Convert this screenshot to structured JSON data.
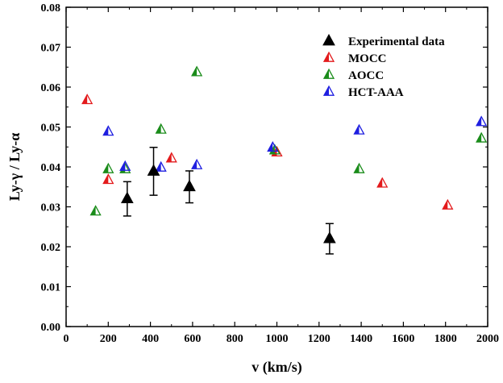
{
  "chart_data": {
    "type": "scatter",
    "title": "",
    "xlabel": "v (km/s)",
    "ylabel": "Ly-γ / Ly-α",
    "xlim": [
      0,
      2000
    ],
    "ylim": [
      0,
      0.08
    ],
    "x_ticks": [
      0,
      200,
      400,
      600,
      800,
      1000,
      1200,
      1400,
      1600,
      1800,
      2000
    ],
    "y_ticks": [
      0.0,
      0.01,
      0.02,
      0.03,
      0.04,
      0.05,
      0.06,
      0.07,
      0.08
    ],
    "x_tick_labels": [
      "0",
      "200",
      "400",
      "600",
      "800",
      "1000",
      "1200",
      "1400",
      "1600",
      "1800",
      "2000"
    ],
    "y_tick_labels": [
      "0.00",
      "0.01",
      "0.02",
      "0.03",
      "0.04",
      "0.05",
      "0.06",
      "0.07",
      "0.08"
    ],
    "grid": false,
    "legend_position": "top-right",
    "series": [
      {
        "name": "Experimental data",
        "color": "#000000",
        "marker": "filled-triangle",
        "points": [
          {
            "x": 290,
            "y": 0.032,
            "err": 0.0043
          },
          {
            "x": 415,
            "y": 0.0389,
            "err": 0.006
          },
          {
            "x": 585,
            "y": 0.035,
            "err": 0.004
          },
          {
            "x": 1250,
            "y": 0.022,
            "err": 0.0038
          }
        ]
      },
      {
        "name": "MOCC",
        "color": "#e31a1c",
        "marker": "half-filled-triangle",
        "points": [
          {
            "x": 100,
            "y": 0.0567
          },
          {
            "x": 200,
            "y": 0.0367
          },
          {
            "x": 500,
            "y": 0.0421
          },
          {
            "x": 1000,
            "y": 0.0436
          },
          {
            "x": 1500,
            "y": 0.0358
          },
          {
            "x": 1810,
            "y": 0.0303
          }
        ]
      },
      {
        "name": "AOCC",
        "color": "#1a8c1a",
        "marker": "half-filled-triangle",
        "points": [
          {
            "x": 140,
            "y": 0.0288
          },
          {
            "x": 200,
            "y": 0.0394
          },
          {
            "x": 280,
            "y": 0.0394
          },
          {
            "x": 450,
            "y": 0.0493
          },
          {
            "x": 620,
            "y": 0.0637
          },
          {
            "x": 990,
            "y": 0.0441
          },
          {
            "x": 1390,
            "y": 0.0394
          },
          {
            "x": 1970,
            "y": 0.0471
          }
        ]
      },
      {
        "name": "HCT-AAA",
        "color": "#1f1fe0",
        "marker": "half-filled-triangle",
        "points": [
          {
            "x": 200,
            "y": 0.0488
          },
          {
            "x": 280,
            "y": 0.04
          },
          {
            "x": 450,
            "y": 0.0398
          },
          {
            "x": 620,
            "y": 0.0404
          },
          {
            "x": 980,
            "y": 0.0448
          },
          {
            "x": 1390,
            "y": 0.0491
          },
          {
            "x": 1970,
            "y": 0.0512
          }
        ]
      }
    ]
  }
}
